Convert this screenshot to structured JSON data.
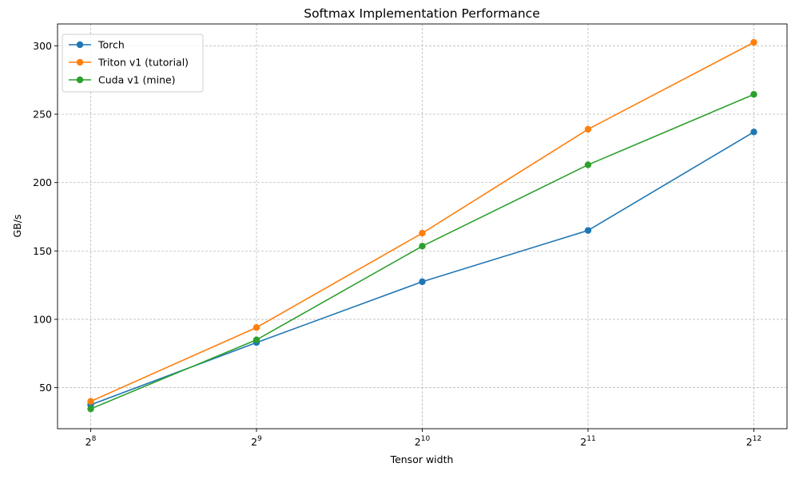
{
  "chart_data": {
    "type": "line",
    "title": "Softmax Implementation Performance",
    "xlabel": "Tensor width",
    "ylabel": "GB/s",
    "x_scale": "log2",
    "x": [
      256,
      512,
      1024,
      2048,
      4096
    ],
    "x_tick_labels": [
      {
        "base": "2",
        "exp": "8"
      },
      {
        "base": "2",
        "exp": "9"
      },
      {
        "base": "2",
        "exp": "10"
      },
      {
        "base": "2",
        "exp": "11"
      },
      {
        "base": "2",
        "exp": "12"
      }
    ],
    "y_ticks": [
      50,
      100,
      150,
      200,
      250,
      300
    ],
    "ylim": [
      20,
      316
    ],
    "grid": true,
    "legend_position": "top-left",
    "series": [
      {
        "name": "Torch",
        "color": "#1f77b4",
        "values": [
          37.5,
          83,
          127.5,
          165,
          237
        ]
      },
      {
        "name": "Triton v1 (tutorial)",
        "color": "#ff7f0e",
        "values": [
          40,
          94,
          163,
          239,
          302.5
        ]
      },
      {
        "name": "Cuda v1 (mine)",
        "color": "#2ca02c",
        "values": [
          34.5,
          85,
          153.5,
          213,
          264.5
        ]
      }
    ]
  }
}
